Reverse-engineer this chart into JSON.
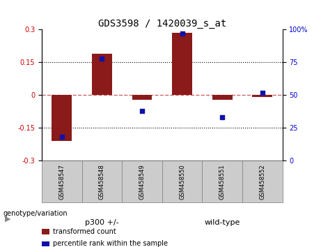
{
  "title": "GDS3598 / 1420039_s_at",
  "samples": [
    "GSM458547",
    "GSM458548",
    "GSM458549",
    "GSM458550",
    "GSM458551",
    "GSM458552"
  ],
  "bar_values": [
    -0.21,
    0.19,
    -0.02,
    0.285,
    -0.02,
    -0.01
  ],
  "scatter_values": [
    18,
    78,
    38,
    97,
    33,
    52
  ],
  "bar_color": "#8B1A1A",
  "scatter_color": "#1111AA",
  "zero_line_color": "#CC6666",
  "grid_color": "#000000",
  "ylim_left": [
    -0.3,
    0.3
  ],
  "ylim_right": [
    0,
    100
  ],
  "yticks_left": [
    -0.3,
    -0.15,
    0,
    0.15,
    0.3
  ],
  "yticks_right": [
    0,
    25,
    50,
    75,
    100
  ],
  "ytick_labels_left": [
    "-0.3",
    "-0.15",
    "0",
    "0.15",
    "0.3"
  ],
  "ytick_labels_right": [
    "0",
    "25",
    "50",
    "75",
    "100%"
  ],
  "legend_items": [
    {
      "label": "transformed count",
      "color": "#8B1A1A"
    },
    {
      "label": "percentile rank within the sample",
      "color": "#1111AA"
    }
  ],
  "genotype_label": "genotype/variation",
  "sample_box_color": "#CCCCCC",
  "p300_label": "p300 +/-",
  "wt_label": "wild-type",
  "group_color": "#90EE90",
  "p300_samples": [
    0,
    1,
    2
  ],
  "wt_samples": [
    3,
    4,
    5
  ]
}
